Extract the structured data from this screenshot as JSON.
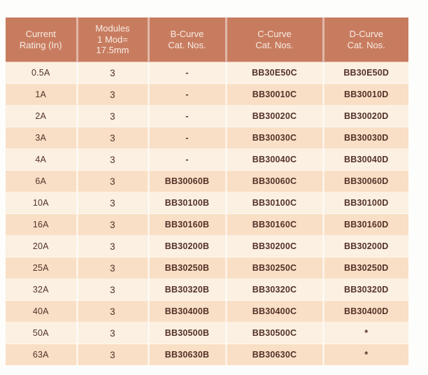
{
  "table": {
    "colors": {
      "header_bg": "#c87c5f",
      "header_text": "#f7ece5",
      "row_light": "#fbf0e1",
      "row_dark": "#f9dfc5",
      "cell_text": "#543129"
    },
    "columns": [
      {
        "id": "current-rating",
        "label_lines": [
          "Current",
          "Rating (In)"
        ]
      },
      {
        "id": "modules",
        "label_lines": [
          "Modules",
          "1 Mod=",
          "17.5mm"
        ]
      },
      {
        "id": "b-curve",
        "label_lines": [
          "B-Curve",
          "Cat. Nos."
        ]
      },
      {
        "id": "c-curve",
        "label_lines": [
          "C-Curve",
          "Cat. Nos."
        ]
      },
      {
        "id": "d-curve",
        "label_lines": [
          "D-Curve",
          "Cat. Nos."
        ]
      }
    ],
    "rows": [
      [
        "0.5A",
        "3",
        "-",
        "BB30E50C",
        "BB30E50D"
      ],
      [
        "1A",
        "3",
        "-",
        "BB30010C",
        "BB30010D"
      ],
      [
        "2A",
        "3",
        "-",
        "BB30020C",
        "BB30020D"
      ],
      [
        "3A",
        "3",
        "-",
        "BB30030C",
        "BB30030D"
      ],
      [
        "4A",
        "3",
        "-",
        "BB30040C",
        "BB30040D"
      ],
      [
        "6A",
        "3",
        "BB30060B",
        "BB30060C",
        "BB30060D"
      ],
      [
        "10A",
        "3",
        "BB30100B",
        "BB30100C",
        "BB30100D"
      ],
      [
        "16A",
        "3",
        "BB30160B",
        "BB30160C",
        "BB30160D"
      ],
      [
        "20A",
        "3",
        "BB30200B",
        "BB30200C",
        "BB30200D"
      ],
      [
        "25A",
        "3",
        "BB30250B",
        "BB30250C",
        "BB30250D"
      ],
      [
        "32A",
        "3",
        "BB30320B",
        "BB30320C",
        "BB30320D"
      ],
      [
        "40A",
        "3",
        "BB30400B",
        "BB30400C",
        "BB30400D"
      ],
      [
        "50A",
        "3",
        "BB30500B",
        "BB30500C",
        "*"
      ],
      [
        "63A",
        "3",
        "BB30630B",
        "BB30630C",
        "*"
      ]
    ]
  }
}
